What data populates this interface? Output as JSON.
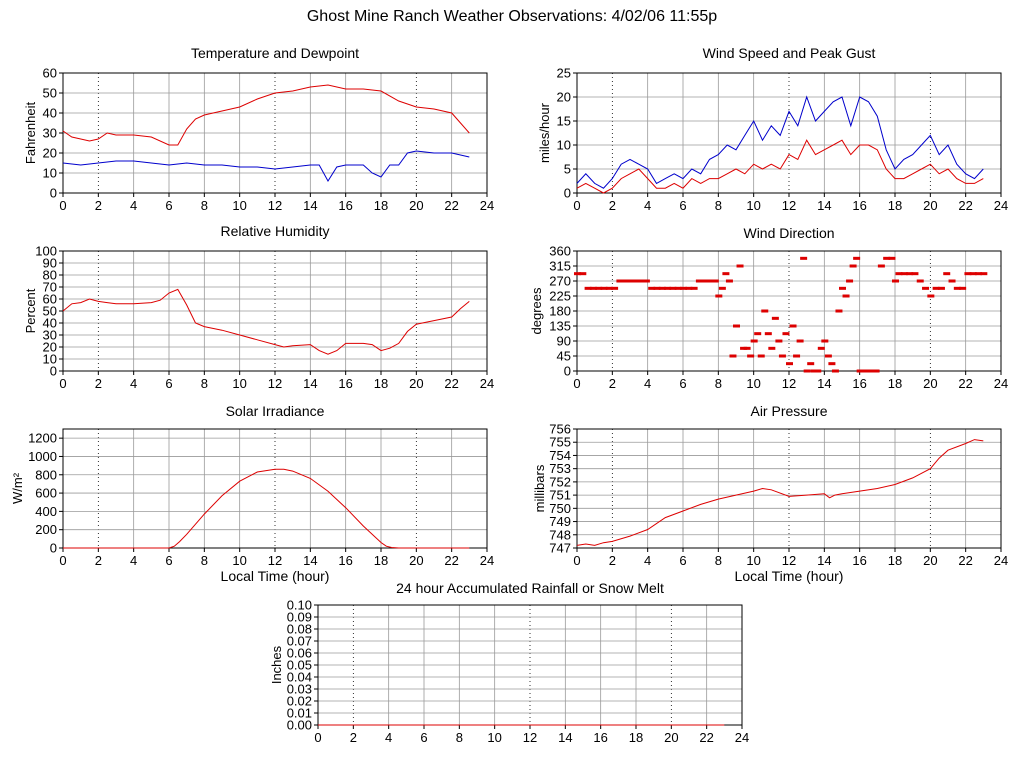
{
  "page": {
    "title": "Ghost Mine Ranch Weather Observations: 4/02/06 11:55p"
  },
  "colors": {
    "primary": "#dd0000",
    "secondary": "#0000cc",
    "grid": "#9a9a9a",
    "axis": "#000000",
    "background": "#ffffff"
  },
  "chart_data": [
    {
      "id": "temp",
      "type": "line",
      "title": "Temperature and Dewpoint",
      "xlabel": "",
      "ylabel": "Fahrenheit",
      "xlim": [
        0,
        24
      ],
      "ylim": [
        0,
        60
      ],
      "xticks": [
        0,
        2,
        4,
        6,
        8,
        10,
        12,
        14,
        16,
        18,
        20,
        22,
        24
      ],
      "yticks": [
        0,
        10,
        20,
        30,
        40,
        50,
        60
      ],
      "grid": true,
      "series": [
        {
          "color": "#dd0000",
          "style": "line",
          "x": [
            0,
            0.5,
            1,
            1.5,
            2,
            2.5,
            3,
            4,
            5,
            6,
            6.5,
            7,
            7.5,
            8,
            9,
            10,
            11,
            12,
            13,
            14,
            15,
            16,
            17,
            18,
            19,
            20,
            21,
            22,
            22.5,
            23
          ],
          "y": [
            31,
            28,
            27,
            26,
            27,
            30,
            29,
            29,
            28,
            24,
            24,
            32,
            37,
            39,
            41,
            43,
            47,
            50,
            51,
            53,
            54,
            52,
            52,
            51,
            46,
            43,
            42,
            40,
            35,
            30
          ]
        },
        {
          "color": "#0000cc",
          "style": "line",
          "x": [
            0,
            1,
            2,
            3,
            4,
            5,
            6,
            7,
            8,
            9,
            10,
            11,
            12,
            13,
            14,
            14.5,
            15,
            15.5,
            16,
            17,
            17.5,
            18,
            18.5,
            19,
            19.5,
            20,
            21,
            22,
            23
          ],
          "y": [
            15,
            14,
            15,
            16,
            16,
            15,
            14,
            15,
            14,
            14,
            13,
            13,
            12,
            13,
            14,
            14,
            6,
            13,
            14,
            14,
            10,
            8,
            14,
            14,
            20,
            21,
            20,
            20,
            18
          ]
        }
      ]
    },
    {
      "id": "wind",
      "type": "line",
      "title": "Wind Speed and Peak Gust",
      "xlabel": "",
      "ylabel": "miles/hour",
      "xlim": [
        0,
        24
      ],
      "ylim": [
        0,
        25
      ],
      "xticks": [
        0,
        2,
        4,
        6,
        8,
        10,
        12,
        14,
        16,
        18,
        20,
        22,
        24
      ],
      "yticks": [
        0,
        5,
        10,
        15,
        20,
        25
      ],
      "grid": true,
      "series": [
        {
          "color": "#0000cc",
          "style": "line",
          "x": [
            0,
            0.5,
            1,
            1.5,
            2,
            2.5,
            3,
            3.5,
            4,
            4.5,
            5,
            5.5,
            6,
            6.5,
            7,
            7.5,
            8,
            8.5,
            9,
            9.5,
            10,
            10.5,
            11,
            11.5,
            12,
            12.5,
            13,
            13.5,
            14,
            14.5,
            15,
            15.5,
            16,
            16.5,
            17,
            17.5,
            18,
            18.5,
            19,
            19.5,
            20,
            20.5,
            21,
            21.5,
            22,
            22.5,
            23
          ],
          "y": [
            2,
            4,
            2,
            1,
            3,
            6,
            7,
            6,
            5,
            2,
            3,
            4,
            3,
            5,
            4,
            7,
            8,
            10,
            9,
            12,
            15,
            11,
            14,
            12,
            17,
            14,
            20,
            15,
            17,
            19,
            20,
            14,
            20,
            19,
            16,
            9,
            5,
            7,
            8,
            10,
            12,
            8,
            10,
            6,
            4,
            3,
            5
          ]
        },
        {
          "color": "#dd0000",
          "style": "line",
          "x": [
            0,
            0.5,
            1,
            1.5,
            2,
            2.5,
            3,
            3.5,
            4,
            4.5,
            5,
            5.5,
            6,
            6.5,
            7,
            7.5,
            8,
            8.5,
            9,
            9.5,
            10,
            10.5,
            11,
            11.5,
            12,
            12.5,
            13,
            13.5,
            14,
            14.5,
            15,
            15.5,
            16,
            16.5,
            17,
            17.5,
            18,
            18.5,
            19,
            19.5,
            20,
            20.5,
            21,
            21.5,
            22,
            22.5,
            23
          ],
          "y": [
            1,
            2,
            1,
            0,
            1,
            3,
            4,
            5,
            3,
            1,
            1,
            2,
            1,
            3,
            2,
            3,
            3,
            4,
            5,
            4,
            6,
            5,
            6,
            5,
            8,
            7,
            11,
            8,
            9,
            10,
            11,
            8,
            10,
            10,
            9,
            5,
            3,
            3,
            4,
            5,
            6,
            4,
            5,
            3,
            2,
            2,
            3
          ]
        }
      ]
    },
    {
      "id": "rh",
      "type": "line",
      "title": "Relative Humidity",
      "xlabel": "",
      "ylabel": "Percent",
      "xlim": [
        0,
        24
      ],
      "ylim": [
        0,
        100
      ],
      "xticks": [
        0,
        2,
        4,
        6,
        8,
        10,
        12,
        14,
        16,
        18,
        20,
        22,
        24
      ],
      "yticks": [
        0,
        10,
        20,
        30,
        40,
        50,
        60,
        70,
        80,
        90,
        100
      ],
      "grid": true,
      "series": [
        {
          "color": "#dd0000",
          "style": "line",
          "x": [
            0,
            0.5,
            1,
            1.5,
            2,
            2.5,
            3,
            4,
            5,
            5.5,
            6,
            6.5,
            7,
            7.5,
            8,
            9,
            10,
            11,
            12,
            12.5,
            13,
            14,
            14.5,
            15,
            15.5,
            16,
            17,
            17.5,
            18,
            18.5,
            19,
            19.5,
            20,
            21,
            22,
            22.5,
            23
          ],
          "y": [
            50,
            56,
            57,
            60,
            58,
            57,
            56,
            56,
            57,
            59,
            65,
            68,
            55,
            40,
            37,
            34,
            30,
            26,
            22,
            20,
            21,
            22,
            17,
            14,
            17,
            23,
            23,
            22,
            17,
            19,
            23,
            33,
            39,
            42,
            45,
            52,
            58
          ]
        }
      ]
    },
    {
      "id": "dir",
      "type": "scatter",
      "title": "Wind Direction",
      "xlabel": "",
      "ylabel": "degrees",
      "xlim": [
        0,
        24
      ],
      "ylim": [
        0,
        360
      ],
      "xticks": [
        0,
        2,
        4,
        6,
        8,
        10,
        12,
        14,
        16,
        18,
        20,
        22,
        24
      ],
      "yticks": [
        0,
        45,
        90,
        135,
        180,
        225,
        270,
        315,
        360
      ],
      "grid": true,
      "series": [
        {
          "color": "#dd0000",
          "style": "dashes",
          "points": [
            [
              0.0,
              292
            ],
            [
              0.3,
              292
            ],
            [
              0.6,
              248
            ],
            [
              0.9,
              248
            ],
            [
              1.2,
              248
            ],
            [
              1.5,
              248
            ],
            [
              1.8,
              248
            ],
            [
              2.1,
              248
            ],
            [
              2.4,
              270
            ],
            [
              2.7,
              270
            ],
            [
              3.0,
              270
            ],
            [
              3.3,
              270
            ],
            [
              3.6,
              270
            ],
            [
              3.9,
              270
            ],
            [
              4.2,
              248
            ],
            [
              4.5,
              248
            ],
            [
              4.8,
              248
            ],
            [
              5.1,
              248
            ],
            [
              5.4,
              248
            ],
            [
              5.7,
              248
            ],
            [
              6.0,
              248
            ],
            [
              6.3,
              248
            ],
            [
              6.6,
              248
            ],
            [
              6.9,
              270
            ],
            [
              7.2,
              270
            ],
            [
              7.5,
              270
            ],
            [
              7.8,
              270
            ],
            [
              8.0,
              225
            ],
            [
              8.2,
              248
            ],
            [
              8.4,
              292
            ],
            [
              8.6,
              270
            ],
            [
              8.8,
              45
            ],
            [
              9.0,
              135
            ],
            [
              9.2,
              315
            ],
            [
              9.4,
              68
            ],
            [
              9.6,
              68
            ],
            [
              9.8,
              45
            ],
            [
              10.0,
              90
            ],
            [
              10.2,
              112
            ],
            [
              10.4,
              45
            ],
            [
              10.6,
              180
            ],
            [
              10.8,
              112
            ],
            [
              11.0,
              68
            ],
            [
              11.2,
              158
            ],
            [
              11.4,
              90
            ],
            [
              11.6,
              45
            ],
            [
              11.8,
              112
            ],
            [
              12.0,
              22
            ],
            [
              12.2,
              135
            ],
            [
              12.4,
              45
            ],
            [
              12.6,
              90
            ],
            [
              12.8,
              338
            ],
            [
              13.0,
              0
            ],
            [
              13.2,
              22
            ],
            [
              13.4,
              0
            ],
            [
              13.6,
              0
            ],
            [
              13.8,
              68
            ],
            [
              14.0,
              90
            ],
            [
              14.2,
              45
            ],
            [
              14.4,
              22
            ],
            [
              14.6,
              0
            ],
            [
              14.8,
              180
            ],
            [
              15.0,
              248
            ],
            [
              15.2,
              225
            ],
            [
              15.4,
              270
            ],
            [
              15.6,
              315
            ],
            [
              15.8,
              338
            ],
            [
              16.0,
              0
            ],
            [
              16.3,
              0
            ],
            [
              16.6,
              0
            ],
            [
              16.9,
              0
            ],
            [
              17.2,
              315
            ],
            [
              17.5,
              338
            ],
            [
              17.8,
              338
            ],
            [
              18.0,
              270
            ],
            [
              18.2,
              292
            ],
            [
              18.5,
              292
            ],
            [
              18.8,
              292
            ],
            [
              19.1,
              292
            ],
            [
              19.4,
              270
            ],
            [
              19.7,
              248
            ],
            [
              20.0,
              225
            ],
            [
              20.3,
              248
            ],
            [
              20.6,
              248
            ],
            [
              20.9,
              292
            ],
            [
              21.2,
              270
            ],
            [
              21.5,
              248
            ],
            [
              21.8,
              248
            ],
            [
              22.1,
              292
            ],
            [
              22.4,
              292
            ],
            [
              22.7,
              292
            ],
            [
              23.0,
              292
            ]
          ]
        }
      ]
    },
    {
      "id": "solar",
      "type": "line",
      "title": "Solar Irradiance",
      "xlabel": "Local Time (hour)",
      "ylabel": "W/m²",
      "xlim": [
        0,
        24
      ],
      "ylim": [
        0,
        1300
      ],
      "xticks": [
        0,
        2,
        4,
        6,
        8,
        10,
        12,
        14,
        16,
        18,
        20,
        22,
        24
      ],
      "yticks": [
        0,
        200,
        400,
        600,
        800,
        1000,
        1200
      ],
      "grid": true,
      "series": [
        {
          "color": "#dd0000",
          "style": "line",
          "x": [
            0,
            6,
            6.3,
            6.6,
            7,
            8,
            9,
            10,
            11,
            12,
            12.5,
            13,
            14,
            15,
            16,
            17,
            18,
            18.3,
            18.6,
            19,
            20,
            23
          ],
          "y": [
            0,
            0,
            20,
            70,
            150,
            370,
            570,
            730,
            830,
            860,
            860,
            840,
            760,
            620,
            440,
            240,
            60,
            20,
            5,
            0,
            0,
            0
          ]
        }
      ]
    },
    {
      "id": "pressure",
      "type": "line",
      "title": "Air Pressure",
      "xlabel": "Local Time (hour)",
      "ylabel": "millibars",
      "xlim": [
        0,
        24
      ],
      "ylim": [
        747,
        756
      ],
      "xticks": [
        0,
        2,
        4,
        6,
        8,
        10,
        12,
        14,
        16,
        18,
        20,
        22,
        24
      ],
      "yticks": [
        747,
        748,
        749,
        750,
        751,
        752,
        753,
        754,
        755,
        756
      ],
      "grid": true,
      "series": [
        {
          "color": "#dd0000",
          "style": "line",
          "x": [
            0,
            0.5,
            1,
            1.5,
            2,
            3,
            4,
            5,
            6,
            7,
            8,
            9,
            10,
            10.5,
            11,
            12,
            13,
            14,
            14.3,
            14.6,
            15,
            16,
            17,
            18,
            19,
            20,
            20.5,
            21,
            22,
            22.5,
            23
          ],
          "y": [
            747.2,
            747.3,
            747.2,
            747.4,
            747.5,
            747.9,
            748.4,
            749.3,
            749.8,
            750.3,
            750.7,
            751.0,
            751.3,
            751.5,
            751.4,
            750.9,
            751.0,
            751.1,
            750.8,
            751.0,
            751.1,
            751.3,
            751.5,
            751.8,
            752.3,
            753.0,
            753.8,
            754.4,
            754.9,
            755.2,
            755.1
          ]
        }
      ]
    },
    {
      "id": "rain",
      "type": "line",
      "title": "24 hour Accumulated Rainfall or Snow Melt",
      "xlabel": "",
      "ylabel": "Inches",
      "xlim": [
        0,
        24
      ],
      "ylim": [
        0,
        0.1
      ],
      "xticks": [
        0,
        2,
        4,
        6,
        8,
        10,
        12,
        14,
        16,
        18,
        20,
        22,
        24
      ],
      "yticks": [
        0.0,
        0.01,
        0.02,
        0.03,
        0.04,
        0.05,
        0.06,
        0.07,
        0.08,
        0.09,
        0.1
      ],
      "ytick_decimals": 2,
      "grid": true,
      "series": [
        {
          "color": "#dd0000",
          "style": "line",
          "x": [
            0,
            23
          ],
          "y": [
            0,
            0
          ]
        }
      ]
    }
  ]
}
